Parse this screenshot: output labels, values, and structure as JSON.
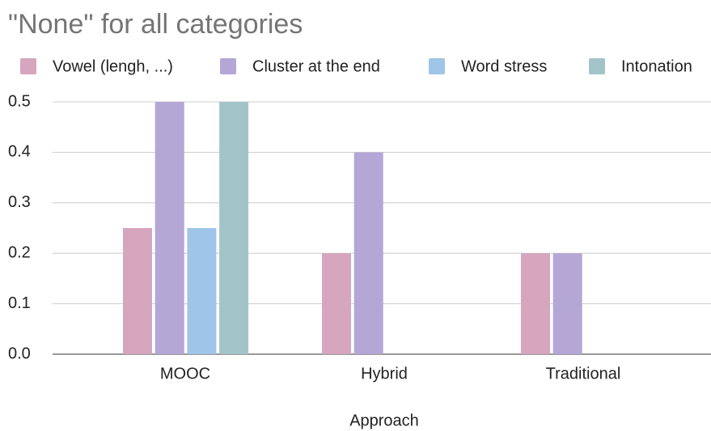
{
  "chart_data": {
    "type": "bar",
    "title": "\"None\" for all categories",
    "x_label": "Approach",
    "categories": [
      "MOOC",
      "Hybrid",
      "Traditional"
    ],
    "series": [
      {
        "name": "Vowel (lengh, ...)",
        "color": "#d5a6bd",
        "values": [
          0.25,
          0.2,
          0.2
        ]
      },
      {
        "name": "Cluster at the end",
        "color": "#b4a7d6",
        "values": [
          0.5,
          0.4,
          0.2
        ]
      },
      {
        "name": "Word stress",
        "color": "#9fc5e8",
        "values": [
          0.25,
          null,
          null
        ]
      },
      {
        "name": "Intonation",
        "color": "#a2c4c9",
        "values": [
          0.5,
          null,
          null
        ]
      }
    ],
    "ylim": [
      0,
      0.5
    ],
    "yticks": [
      {
        "value": 0,
        "label": "0.0"
      },
      0.1,
      0.2,
      0.3,
      0.4,
      0.5
    ],
    "grid": true,
    "legend": "top"
  }
}
